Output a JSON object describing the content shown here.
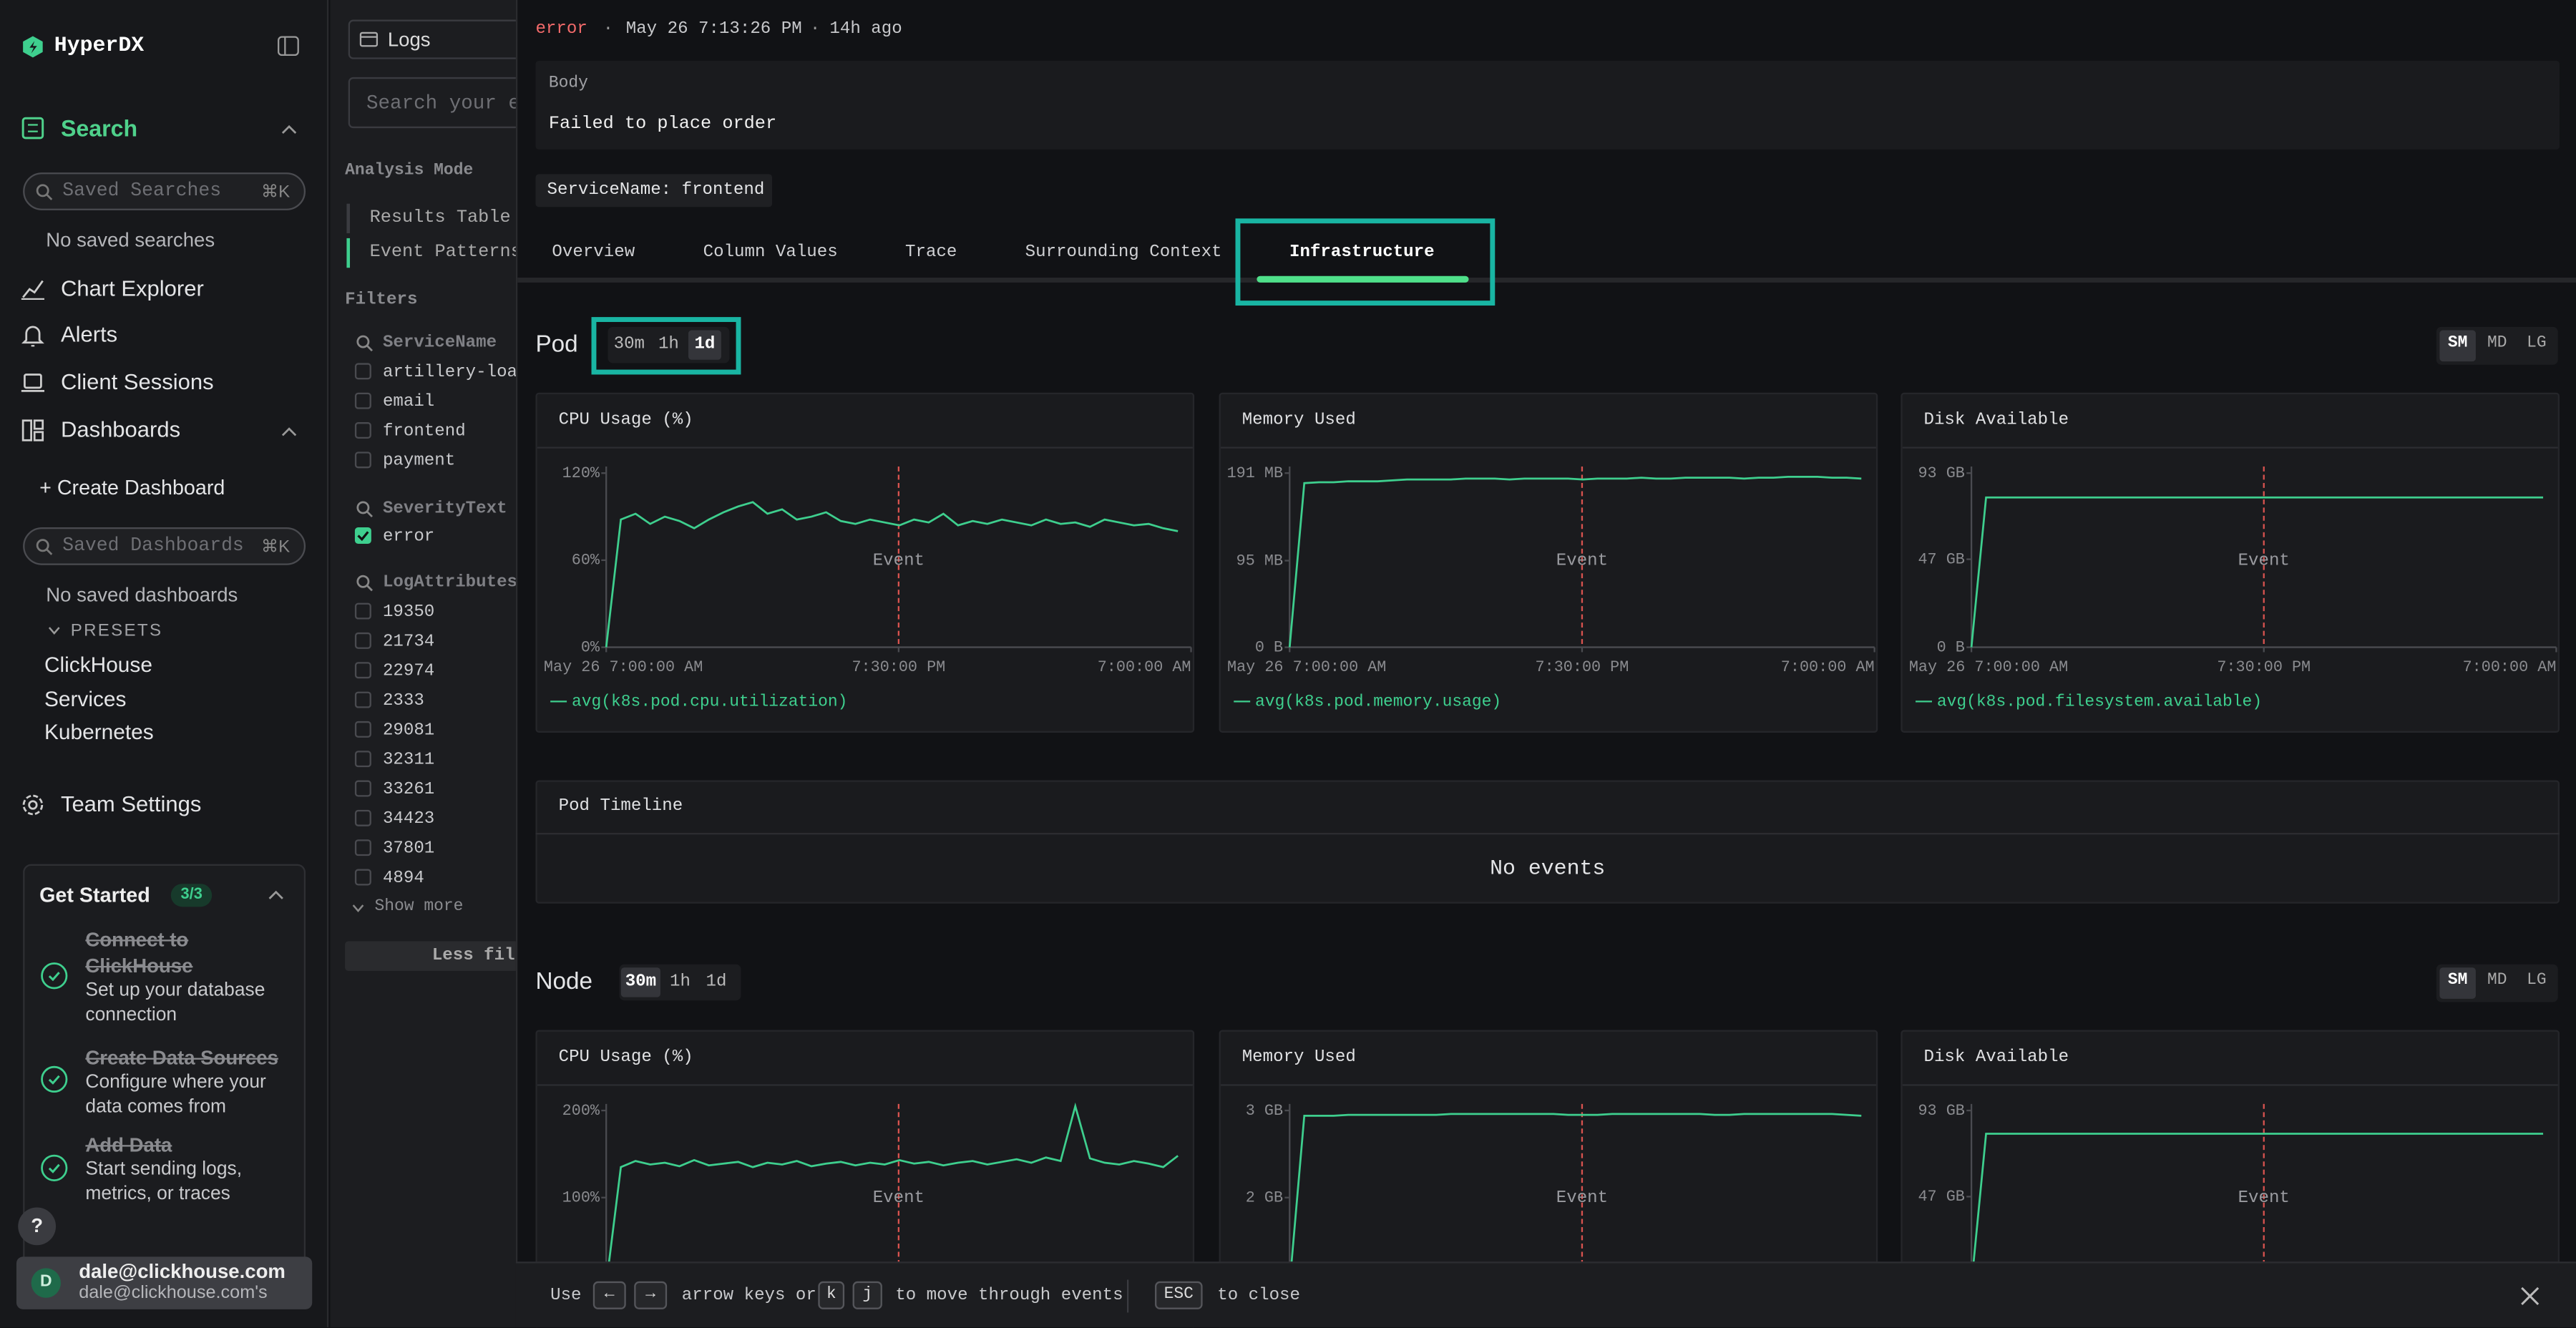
{
  "sidebar": {
    "brand": "HyperDX",
    "search": "Search",
    "saved_searches_placeholder": "Saved Searches",
    "shortcut": "⌘K",
    "no_saved_searches": "No saved searches",
    "nav": [
      "Chart Explorer",
      "Alerts",
      "Client Sessions",
      "Dashboards"
    ],
    "create_dashboard": "+ Create Dashboard",
    "saved_dashboards_placeholder": "Saved Dashboards",
    "no_saved_dashboards": "No saved dashboards",
    "presets_label": "PRESETS",
    "presets": [
      "ClickHouse",
      "Services",
      "Kubernetes"
    ],
    "team_settings": "Team Settings",
    "get_started": {
      "title": "Get Started",
      "progress": "3/3",
      "steps": [
        {
          "title": "Connect to ClickHouse",
          "description": "Set up your database connection"
        },
        {
          "title": "Create Data Sources",
          "description": "Configure where your data comes from"
        },
        {
          "title": "Add Data",
          "description": "Start sending logs, metrics, or traces"
        }
      ]
    },
    "help": "?",
    "user": {
      "avatar": "D",
      "email": "dale@clickhouse.com",
      "team": "dale@clickhouse.com's"
    }
  },
  "search_panel": {
    "source": "Logs",
    "query_placeholder": "Search your e",
    "analysis_mode": "Analysis Mode",
    "modes": [
      "Results Table",
      "Event Patterns"
    ],
    "active_mode": 1,
    "filters": "Filters",
    "groups": [
      {
        "name": "ServiceName",
        "values": [
          "artillery-loa",
          "email",
          "frontend",
          "payment"
        ]
      },
      {
        "name": "SeverityText",
        "values": [
          "error"
        ],
        "selected": [
          0
        ]
      },
      {
        "name": "LogAttributes",
        "values": [
          "19350",
          "21734",
          "22974",
          "2333",
          "29081",
          "32311",
          "33261",
          "34423",
          "37801",
          "4894"
        ]
      }
    ],
    "show_more": "Show more",
    "less_filters": "Less fil"
  },
  "event": {
    "level": "error",
    "separator": "·",
    "timestamp": "May 26 7:13:26 PM",
    "ago": "14h ago",
    "body_label": "Body",
    "body": "Failed to place order",
    "attribute": "ServiceName: frontend",
    "tabs": [
      "Overview",
      "Column Values",
      "Trace",
      "Surrounding Context",
      "Infrastructure"
    ],
    "active_tab": 4
  },
  "pod": {
    "title": "Pod",
    "ranges": [
      "30m",
      "1h",
      "1d"
    ],
    "active_range": 2,
    "sizes": [
      "SM",
      "MD",
      "LG"
    ],
    "active_size": 0,
    "charts": [
      {
        "type": "line",
        "title": "CPU Usage (%)",
        "ylim": [
          0,
          120
        ],
        "yticks": [
          {
            "value": 0,
            "label": "0%"
          },
          {
            "value": 60,
            "label": "60%"
          },
          {
            "value": 120,
            "label": "120%"
          }
        ],
        "xticks": [
          "May 26 7:00:00 AM",
          "7:30:00 PM",
          "7:00:00 AM"
        ],
        "event_label": "Event",
        "series": [
          {
            "name": "avg(k8s.pod.cpu.utilization)",
            "color": "#3ecf8e",
            "values": [
              0,
              88,
              92,
              85,
              90,
              87,
              82,
              88,
              93,
              97,
              100,
              92,
              95,
              88,
              90,
              93,
              87,
              85,
              88,
              86,
              84,
              88,
              86,
              92,
              84,
              87,
              85,
              88,
              86,
              84,
              88,
              85,
              86,
              83,
              88,
              86,
              84,
              85,
              82,
              80
            ]
          }
        ]
      },
      {
        "type": "line",
        "title": "Memory Used",
        "ylim": [
          0,
          191
        ],
        "yticks": [
          {
            "value": 0,
            "label": "0 B"
          },
          {
            "value": 95,
            "label": "95 MB"
          },
          {
            "value": 191,
            "label": "191 MB"
          }
        ],
        "xticks": [
          "May 26 7:00:00 AM",
          "7:30:00 PM",
          "7:00:00 AM"
        ],
        "event_label": "Event",
        "series": [
          {
            "name": "avg(k8s.pod.memory.usage)",
            "color": "#3ecf8e",
            "values": [
              0,
              180,
              181,
              181,
              182,
              182,
              182,
              183,
              184,
              184,
              184,
              184,
              185,
              185,
              185,
              184,
              185,
              185,
              185,
              185,
              184,
              185,
              185,
              185,
              186,
              185,
              185,
              186,
              186,
              186,
              186,
              185,
              186,
              186,
              187,
              187,
              187,
              186,
              186,
              185
            ]
          }
        ]
      },
      {
        "type": "line",
        "title": "Disk Available",
        "ylim": [
          0,
          93
        ],
        "yticks": [
          {
            "value": 0,
            "label": "0 B"
          },
          {
            "value": 47,
            "label": "47 GB"
          },
          {
            "value": 93,
            "label": "93 GB"
          }
        ],
        "xticks": [
          "May 26 7:00:00 AM",
          "7:30:00 PM",
          "7:00:00 AM"
        ],
        "event_label": "Event",
        "series": [
          {
            "name": "avg(k8s.pod.filesystem.available)",
            "color": "#3ecf8e",
            "values": [
              0,
              80,
              80,
              80,
              80,
              80,
              80,
              80,
              80,
              80,
              80,
              80,
              80,
              80,
              80,
              80,
              80,
              80,
              80,
              80,
              80,
              80,
              80,
              80,
              80,
              80,
              80,
              80,
              80,
              80,
              80,
              80,
              80,
              80,
              80,
              80,
              80,
              80,
              80,
              80
            ]
          }
        ]
      }
    ],
    "timeline": {
      "title": "Pod Timeline",
      "empty": "No events"
    }
  },
  "node": {
    "title": "Node",
    "ranges": [
      "30m",
      "1h",
      "1d"
    ],
    "active_range": 0,
    "sizes": [
      "SM",
      "MD",
      "LG"
    ],
    "active_size": 0,
    "charts": [
      {
        "type": "line",
        "title": "CPU Usage (%)",
        "ylim": [
          0,
          200
        ],
        "yticks": [
          {
            "value": 100,
            "label": "100%"
          },
          {
            "value": 200,
            "label": "200%"
          }
        ],
        "event_label": "Event",
        "series": [
          {
            "color": "#3ecf8e",
            "values": [
              0,
              135,
              142,
              138,
              140,
              136,
              143,
              137,
              139,
              141,
              135,
              140,
              138,
              142,
              136,
              139,
              141,
              137,
              140,
              138,
              143,
              139,
              141,
              137,
              140,
              142,
              138,
              141,
              144,
              140,
              146,
              142,
              205,
              145,
              140,
              138,
              142,
              139,
              135,
              148
            ]
          }
        ]
      },
      {
        "type": "line",
        "title": "Memory Used",
        "ylim": [
          1,
          3
        ],
        "yticks": [
          {
            "value": 2,
            "label": "2 GB"
          },
          {
            "value": 3,
            "label": "3 GB"
          }
        ],
        "event_label": "Event",
        "series": [
          {
            "color": "#3ecf8e",
            "values": [
              1,
              2.94,
              2.94,
              2.94,
              2.95,
              2.95,
              2.95,
              2.95,
              2.95,
              2.95,
              2.95,
              2.96,
              2.96,
              2.96,
              2.96,
              2.96,
              2.96,
              2.96,
              2.96,
              2.95,
              2.95,
              2.95,
              2.96,
              2.96,
              2.96,
              2.96,
              2.96,
              2.96,
              2.96,
              2.95,
              2.95,
              2.96,
              2.96,
              2.96,
              2.96,
              2.96,
              2.96,
              2.96,
              2.95,
              2.94
            ]
          }
        ]
      },
      {
        "type": "line",
        "title": "Disk Available",
        "ylim": [
          0,
          93
        ],
        "yticks": [
          {
            "value": 47,
            "label": "47 GB"
          },
          {
            "value": 93,
            "label": "93 GB"
          }
        ],
        "event_label": "Event",
        "series": [
          {
            "color": "#3ecf8e",
            "values": [
              0,
              80.6,
              80.6,
              80.6,
              80.6,
              80.6,
              80.6,
              80.6,
              80.6,
              80.6,
              80.6,
              80.6,
              80.6,
              80.6,
              80.6,
              80.6,
              80.6,
              80.6,
              80.6,
              80.6,
              80.6,
              80.6,
              80.6,
              80.6,
              80.6,
              80.6,
              80.6,
              80.6,
              80.6,
              80.6,
              80.6,
              80.6,
              80.6,
              80.6,
              80.6,
              80.6,
              80.6,
              80.6,
              80.6,
              80.6
            ]
          }
        ]
      }
    ]
  },
  "footer": {
    "use": "Use",
    "nav_keys": [
      "←",
      "→"
    ],
    "arrow_keys": "arrow keys or",
    "vim_keys": [
      "k",
      "j"
    ],
    "move": "to move through events",
    "esc": "ESC",
    "close": "to close"
  }
}
